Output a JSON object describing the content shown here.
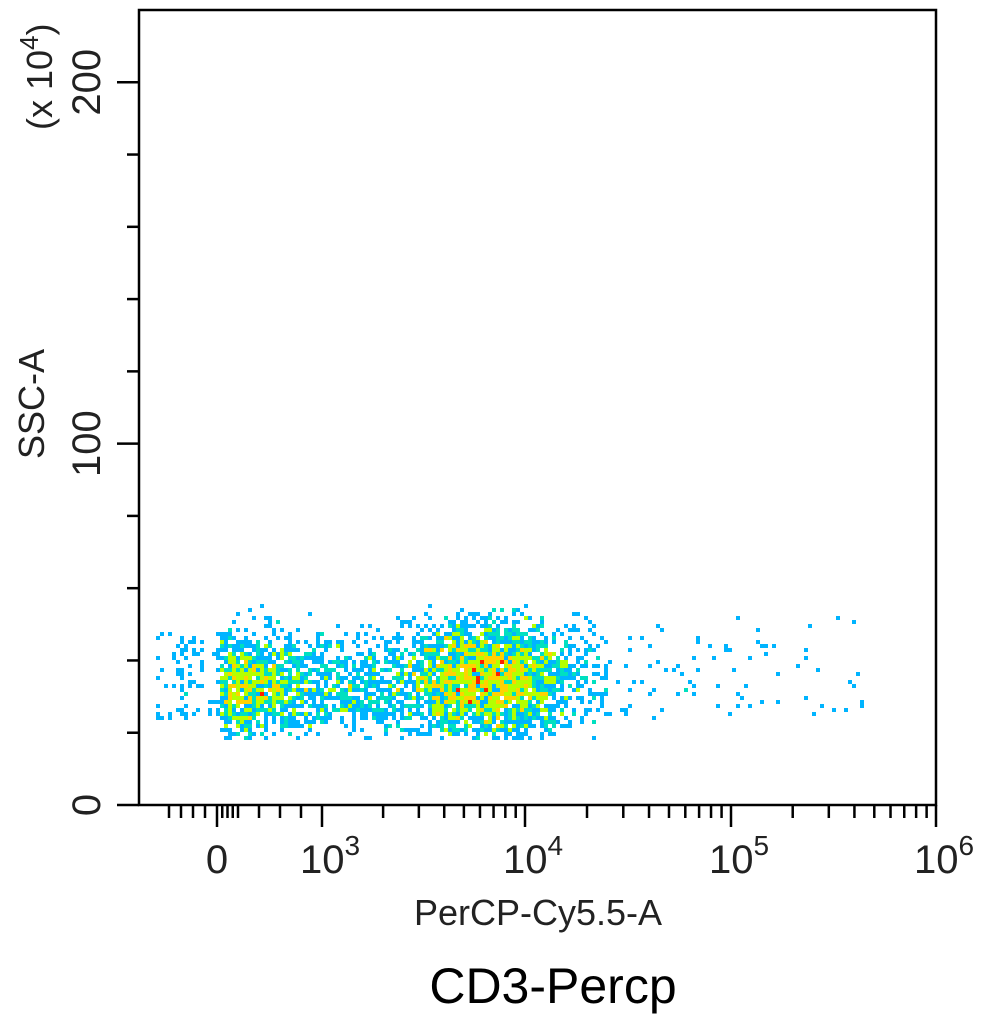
{
  "chart_data": {
    "type": "scatter",
    "subtype": "flow-cytometry-density",
    "title": "CD3-Percp",
    "xlabel": "PerCP-Cy5.5-A",
    "ylabel": "SSC-A",
    "y_multiplier_label": "(x 10",
    "y_multiplier_exponent": "4",
    "y_multiplier_close": ")",
    "x_scale": "biexponential",
    "y_scale": "linear",
    "ylim": [
      0,
      220
    ],
    "y_ticks": [
      {
        "value": 0,
        "label": "0"
      },
      {
        "value": 100,
        "label": "100"
      },
      {
        "value": 200,
        "label": "200"
      }
    ],
    "x_ticks": [
      {
        "value": 0,
        "base": "0",
        "exp": ""
      },
      {
        "value": 1000,
        "base": "10",
        "exp": "3"
      },
      {
        "value": 10000,
        "base": "10",
        "exp": "4"
      },
      {
        "value": 100000,
        "base": "10",
        "exp": "5"
      },
      {
        "value": 1000000,
        "base": "10",
        "exp": "6"
      }
    ],
    "populations": [
      {
        "name": "",
        "x_center": 600,
        "y_center": 33,
        "x_spread_log": 0.45,
        "y_spread": 7,
        "count": 1500
      },
      {
        "name": "",
        "x_center": 6500,
        "y_center": 35,
        "x_spread_log": 0.22,
        "y_spread": 8,
        "count": 2600
      }
    ],
    "sparse_tail": {
      "x_range": [
        15000,
        450000
      ],
      "y_range": [
        25,
        52
      ],
      "count": 110
    },
    "density_colors": [
      "#1414ff",
      "#00b4ff",
      "#00e0c0",
      "#b4ff00",
      "#ffd200",
      "#ff2000"
    ],
    "grid": false,
    "legend": "none"
  }
}
